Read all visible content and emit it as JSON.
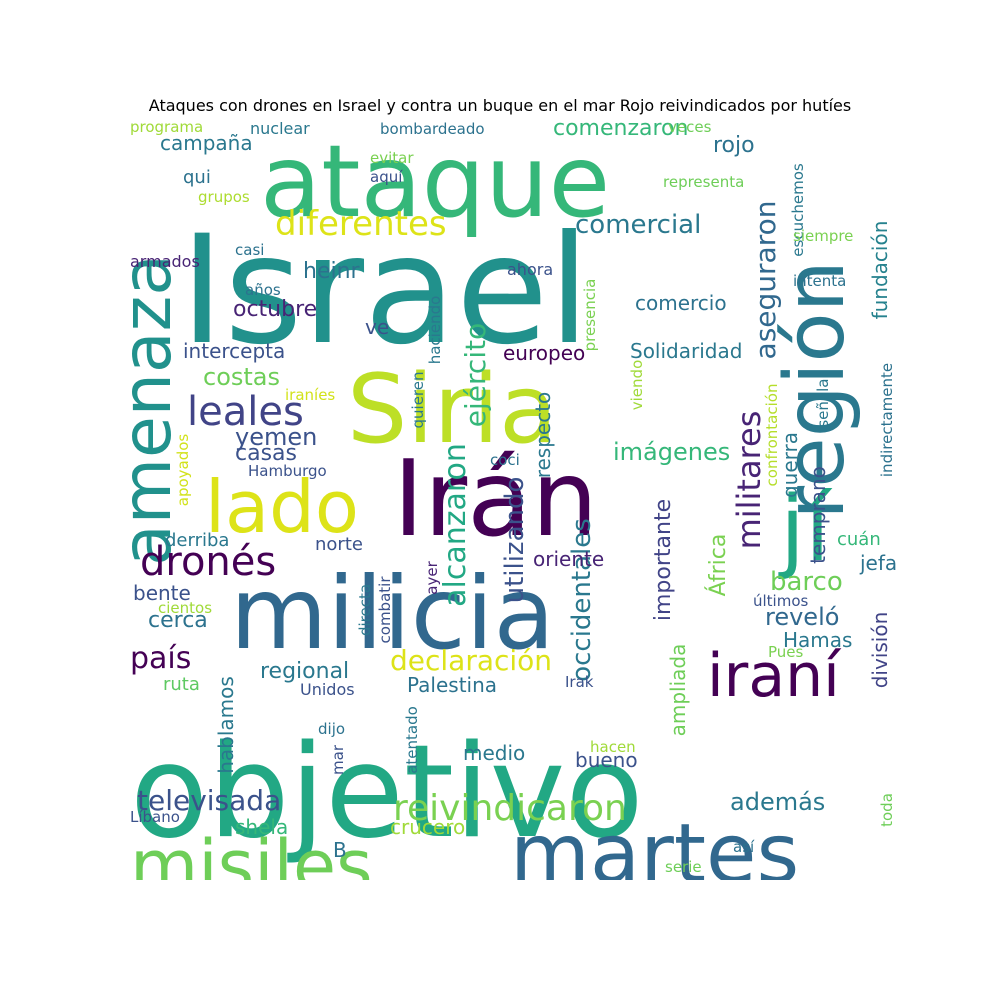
{
  "title": "Ataques con drones en Israel y contra un buque en el mar Rojo reivindicados por hutíes",
  "words": [
    {
      "text": "Israel",
      "color": "#21918c"
    },
    {
      "text": "objetivo",
      "color": "#22a884"
    },
    {
      "text": "ataque",
      "color": "#35b779"
    },
    {
      "text": "milicia",
      "color": "#31688e"
    },
    {
      "text": "Irán",
      "color": "#440154"
    },
    {
      "text": "Siria",
      "color": "#bddf26"
    },
    {
      "text": "región",
      "color": "#2a788e"
    },
    {
      "text": "amenaza",
      "color": "#21918c"
    },
    {
      "text": "martes",
      "color": "#31688e"
    },
    {
      "text": "misiles",
      "color": "#6ece58"
    },
    {
      "text": "lado",
      "color": "#dde318"
    },
    {
      "text": "jí",
      "color": "#22a884"
    },
    {
      "text": "iraní",
      "color": "#440154"
    },
    {
      "text": "diferentes",
      "color": "#dde318"
    },
    {
      "text": "leales",
      "color": "#414487"
    },
    {
      "text": "dronés",
      "color": "#440154"
    },
    {
      "text": "reivindicaron",
      "color": "#7ad151"
    },
    {
      "text": "ejército",
      "color": "#35b779"
    },
    {
      "text": "militares",
      "color": "#482475"
    },
    {
      "text": "aseguraron",
      "color": "#31688e"
    },
    {
      "text": "alcanzaron",
      "color": "#22a884"
    },
    {
      "text": "declaración",
      "color": "#dde318"
    },
    {
      "text": "comercial",
      "color": "#2a788e"
    },
    {
      "text": "televisada",
      "color": "#3b528b"
    },
    {
      "text": "comenzaron",
      "color": "#35b779"
    },
    {
      "text": "yemen",
      "color": "#3b528b"
    },
    {
      "text": "costas",
      "color": "#6ece58"
    },
    {
      "text": "imágenes",
      "color": "#35b779"
    },
    {
      "text": "barco",
      "color": "#6ece58"
    },
    {
      "text": "además",
      "color": "#2a788e"
    },
    {
      "text": "reveló",
      "color": "#31688e"
    },
    {
      "text": "país",
      "color": "#440154"
    },
    {
      "text": "utilizando",
      "color": "#3b528b"
    },
    {
      "text": "occidentales",
      "color": "#2a788e"
    },
    {
      "text": "importante",
      "color": "#414487"
    },
    {
      "text": "campaña",
      "color": "#2a788e"
    },
    {
      "text": "casas",
      "color": "#3b528b"
    },
    {
      "text": "comercio",
      "color": "#2c728e"
    },
    {
      "text": "Solidaridad",
      "color": "#2a788e"
    },
    {
      "text": "octubre",
      "color": "#482475"
    },
    {
      "text": "intercepta",
      "color": "#3b528b"
    },
    {
      "text": "heinr",
      "color": "#2c728e"
    },
    {
      "text": "rojo",
      "color": "#2c728e"
    },
    {
      "text": "europeo",
      "color": "#440154"
    },
    {
      "text": "fundación",
      "color": "#26828e"
    },
    {
      "text": "guerra",
      "color": "#2a788e"
    },
    {
      "text": "temprano",
      "color": "#3b528b"
    },
    {
      "text": "África",
      "color": "#7ad151"
    },
    {
      "text": "respecto",
      "color": "#2a788e"
    },
    {
      "text": "ampliada",
      "color": "#6ece58"
    },
    {
      "text": "regional",
      "color": "#2a788e"
    },
    {
      "text": "Palestina",
      "color": "#2c728e"
    },
    {
      "text": "medio",
      "color": "#2a788e"
    },
    {
      "text": "bueno",
      "color": "#3b528b"
    },
    {
      "text": "shela",
      "color": "#35b779"
    },
    {
      "text": "crucero",
      "color": "#a0da39"
    },
    {
      "text": "hablamos",
      "color": "#2a788e"
    },
    {
      "text": "división",
      "color": "#414487"
    },
    {
      "text": "Hamas",
      "color": "#2a788e"
    },
    {
      "text": "cerca",
      "color": "#2c728e"
    },
    {
      "text": "bente",
      "color": "#3b528b"
    },
    {
      "text": "derriba",
      "color": "#2a788e"
    },
    {
      "text": "norte",
      "color": "#3b528b"
    },
    {
      "text": "oriente",
      "color": "#482475"
    },
    {
      "text": "jefa",
      "color": "#2c728e"
    },
    {
      "text": "cuán",
      "color": "#35b779"
    },
    {
      "text": "ruta",
      "color": "#5ec962"
    },
    {
      "text": "Unidos",
      "color": "#3b528b"
    },
    {
      "text": "ve",
      "color": "#3b528b"
    },
    {
      "text": "qui",
      "color": "#2c728e"
    },
    {
      "text": "programa",
      "color": "#a0da39"
    },
    {
      "text": "nuclear",
      "color": "#2a788e"
    },
    {
      "text": "bombardeado",
      "color": "#2c728e"
    },
    {
      "text": "veces",
      "color": "#6ece58"
    },
    {
      "text": "evitar",
      "color": "#7ad151"
    },
    {
      "text": "aquí",
      "color": "#3b528b"
    },
    {
      "text": "grupos",
      "color": "#addc30"
    },
    {
      "text": "representa",
      "color": "#6ece58"
    },
    {
      "text": "escuchemos",
      "color": "#2a788e"
    },
    {
      "text": "siempre",
      "color": "#7ad151"
    },
    {
      "text": "casi",
      "color": "#2c728e"
    },
    {
      "text": "armados",
      "color": "#482475"
    },
    {
      "text": "ahora",
      "color": "#3b528b"
    },
    {
      "text": "intenta",
      "color": "#2c728e"
    },
    {
      "text": "años",
      "color": "#2c728e"
    },
    {
      "text": "haciendo",
      "color": "#2a788e"
    },
    {
      "text": "presencia",
      "color": "#7ad151"
    },
    {
      "text": "quieren",
      "color": "#2a788e"
    },
    {
      "text": "viendo",
      "color": "#a0da39"
    },
    {
      "text": "iraníes",
      "color": "#d2e21b"
    },
    {
      "text": "confrontación",
      "color": "#b5de2b"
    },
    {
      "text": "señalar",
      "color": "#2a788e"
    },
    {
      "text": "indirectamente",
      "color": "#2c728e"
    },
    {
      "text": "apoyados",
      "color": "#d2e21b"
    },
    {
      "text": "Hamburgo",
      "color": "#3b528b"
    },
    {
      "text": "coci",
      "color": "#2c728e"
    },
    {
      "text": "directa",
      "color": "#2a788e"
    },
    {
      "text": "combatir",
      "color": "#3b528b"
    },
    {
      "text": "ayer",
      "color": "#482475"
    },
    {
      "text": "cientos",
      "color": "#a0da39"
    },
    {
      "text": "últimos",
      "color": "#3b528b"
    },
    {
      "text": "Pues",
      "color": "#7ad151"
    },
    {
      "text": "Irak",
      "color": "#3b528b"
    },
    {
      "text": "dijo",
      "color": "#2c728e"
    },
    {
      "text": "mar",
      "color": "#3b528b"
    },
    {
      "text": "atentado",
      "color": "#2a788e"
    },
    {
      "text": "hacen",
      "color": "#a0da39"
    },
    {
      "text": "Líbano",
      "color": "#3b528b"
    },
    {
      "text": "B",
      "color": "#2c728e"
    },
    {
      "text": "así",
      "color": "#2c728e"
    },
    {
      "text": "serie",
      "color": "#6ece58"
    },
    {
      "text": "toda",
      "color": "#6ece58"
    }
  ]
}
